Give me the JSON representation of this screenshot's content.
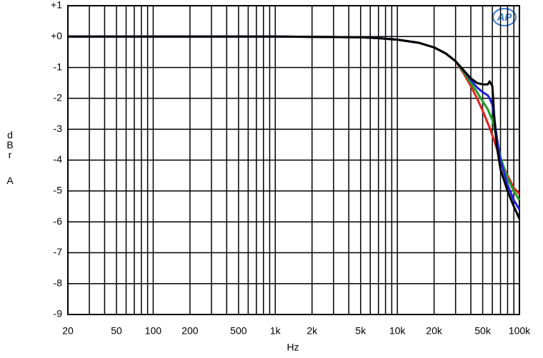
{
  "chart_data": {
    "type": "line",
    "logo": "AP",
    "xlabel": "Hz",
    "ylabel": "dBr A",
    "xscale": "log",
    "grid": true,
    "xlim": [
      20,
      100000
    ],
    "ylim": [
      -9,
      1
    ],
    "xticks": [
      20,
      50,
      100,
      200,
      500,
      {
        "value": 1000,
        "label": "1k"
      },
      {
        "value": 2000,
        "label": "2k"
      },
      {
        "value": 5000,
        "label": "5k"
      },
      {
        "value": 10000,
        "label": "10k"
      },
      {
        "value": 20000,
        "label": "20k"
      },
      {
        "value": 50000,
        "label": "50k"
      },
      {
        "value": 100000,
        "label": "100k"
      }
    ],
    "xgrid": [
      20,
      30,
      40,
      50,
      60,
      70,
      80,
      90,
      100,
      200,
      300,
      400,
      500,
      600,
      700,
      800,
      900,
      1000,
      2000,
      3000,
      4000,
      5000,
      6000,
      7000,
      8000,
      9000,
      10000,
      20000,
      30000,
      40000,
      50000,
      60000,
      70000,
      80000,
      90000,
      100000
    ],
    "yticks": [
      {
        "value": 1,
        "label": "+1"
      },
      {
        "value": 0,
        "label": "+0"
      },
      -1,
      -2,
      -3,
      -4,
      -5,
      -6,
      -7,
      -8,
      -9
    ],
    "x": [
      20,
      100,
      1000,
      5000,
      7000,
      10000,
      15000,
      20000,
      25000,
      30000,
      35000,
      40000,
      45000,
      50000,
      55000,
      57000,
      60000,
      62000,
      65000,
      70000,
      80000,
      90000,
      100000
    ],
    "series": [
      {
        "color": "#e02020",
        "values": [
          0,
          0,
          0,
          -0.02,
          -0.05,
          -0.1,
          -0.2,
          -0.35,
          -0.55,
          -0.8,
          -1.2,
          -1.6,
          -2.0,
          -2.4,
          -2.8,
          -2.95,
          -3.2,
          -3.35,
          -3.6,
          -4.0,
          -4.5,
          -4.9,
          -5.1
        ]
      },
      {
        "color": "#20a020",
        "values": [
          0,
          0,
          0,
          -0.02,
          -0.05,
          -0.1,
          -0.2,
          -0.35,
          -0.55,
          -0.8,
          -1.15,
          -1.5,
          -1.8,
          -2.1,
          -2.35,
          -2.5,
          -2.7,
          -2.9,
          -3.3,
          -3.9,
          -4.6,
          -5.0,
          -5.3
        ]
      },
      {
        "color": "#2020e0",
        "values": [
          0,
          0,
          0,
          -0.02,
          -0.05,
          -0.1,
          -0.2,
          -0.35,
          -0.55,
          -0.8,
          -1.1,
          -1.4,
          -1.65,
          -1.8,
          -1.9,
          -2.0,
          -2.2,
          -2.6,
          -3.2,
          -4.0,
          -4.8,
          -5.3,
          -5.6
        ]
      },
      {
        "color": "#000000",
        "values": [
          0,
          0,
          0,
          -0.02,
          -0.05,
          -0.1,
          -0.2,
          -0.35,
          -0.55,
          -0.8,
          -1.1,
          -1.35,
          -1.5,
          -1.55,
          -1.55,
          -1.45,
          -1.6,
          -2.5,
          -3.5,
          -4.3,
          -5.0,
          -5.5,
          -5.9
        ]
      }
    ]
  }
}
